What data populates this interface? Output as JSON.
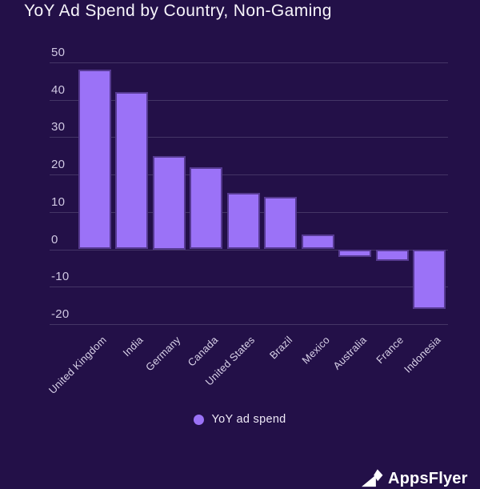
{
  "header": {
    "title": "YoY Ad Spend by Country, Non-Gaming"
  },
  "chart_data": {
    "type": "bar",
    "title": "YoY Ad Spend by Country, Non-Gaming",
    "categories": [
      "United Kingdom",
      "India",
      "Germany",
      "Canada",
      "United States",
      "Brazil",
      "Mexico",
      "Australia",
      "France",
      "Indonesia"
    ],
    "series": [
      {
        "name": "YoY ad spend",
        "values": [
          48,
          42,
          25,
          22,
          15,
          14,
          4,
          -2,
          -3,
          -16
        ]
      }
    ],
    "xlabel": "",
    "ylabel": "",
    "ylim": [
      -20,
      50
    ],
    "yticks": [
      50,
      40,
      30,
      20,
      10,
      0,
      -10,
      -20
    ],
    "grid": true,
    "legend_position": "bottom",
    "x_label_rotation_deg": 45
  },
  "legend": {
    "label": "YoY ad spend"
  },
  "logo": {
    "text": "AppsFlyer",
    "icon": "appsflyer-mark-icon",
    "note_cut_off": true
  },
  "colors": {
    "background": "#231048",
    "bar": "#9b72f7",
    "bar_border": "#1e0d3e8c",
    "gridline": "#443566",
    "tick_label": "#cfc7e2",
    "x_label": "#d8d1e8",
    "legend_text": "#eee9f7",
    "title": "#f7f5fb",
    "logo": "#ffffff"
  }
}
